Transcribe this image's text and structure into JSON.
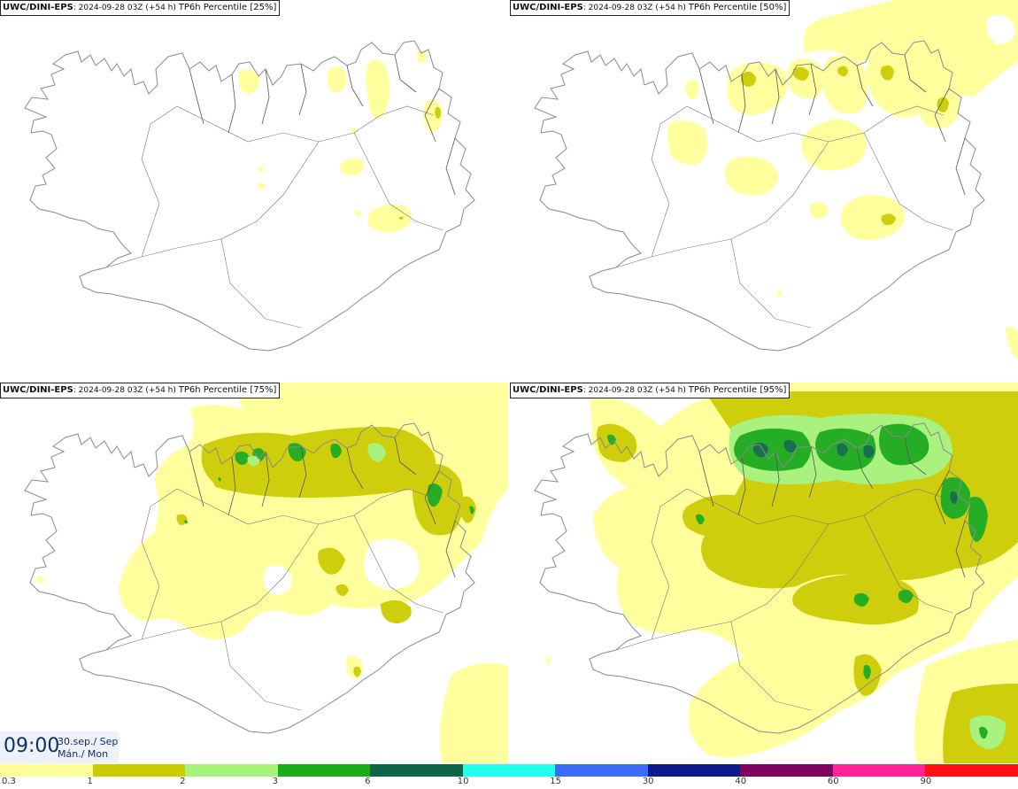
{
  "panels": [
    {
      "model": "UWC/DINI-EPS",
      "run": "2024-09-28 03Z (+54 h)",
      "field": "TP6h Percentile [25%]"
    },
    {
      "model": "UWC/DINI-EPS",
      "run": "2024-09-28 03Z (+54 h)",
      "field": "TP6h Percentile [50%]"
    },
    {
      "model": "UWC/DINI-EPS",
      "run": "2024-09-28 03Z (+54 h)",
      "field": "TP6h Percentile [75%]"
    },
    {
      "model": "UWC/DINI-EPS",
      "run": "2024-09-28 03Z (+54 h)",
      "field": "TP6h Percentile [95%]"
    }
  ],
  "valid_time": {
    "time": "09:00",
    "date_line1": "30.sep./ Sep",
    "date_line2": "Mán./ Mon"
  },
  "colorbar": {
    "ticks": [
      "0.3",
      "1",
      "2",
      "3",
      "6",
      "10",
      "15",
      "30",
      "40",
      "60",
      "90"
    ],
    "colors": [
      "#ffff99",
      "#cccc00",
      "#a6f27a",
      "#1aaa1a",
      "#0f6646",
      "#22ffee",
      "#3a6cf5",
      "#0d1a8a",
      "#800060",
      "#ff2299",
      "#ff1111"
    ]
  }
}
